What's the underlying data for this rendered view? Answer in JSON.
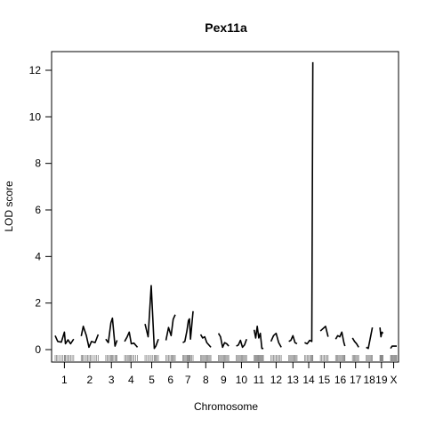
{
  "chart_data": {
    "type": "line",
    "title": "Pex11a",
    "xlabel": "Chromosome",
    "ylabel": "LOD score",
    "ylim": [
      0,
      12.8
    ],
    "y_ticks": [
      0,
      2,
      4,
      6,
      8,
      10,
      12
    ],
    "grid": false,
    "legend": "none",
    "line_color": "#000000",
    "chromosomes": [
      {
        "label": "1",
        "x": [
          0,
          5,
          12,
          18,
          20,
          25,
          30,
          36
        ],
        "lod": [
          0.6,
          0.35,
          0.32,
          0.75,
          0.25,
          0.42,
          0.25,
          0.45
        ]
      },
      {
        "label": "2",
        "x": [
          0,
          4,
          10,
          15,
          20,
          27,
          33
        ],
        "lod": [
          0.58,
          1.0,
          0.6,
          0.1,
          0.35,
          0.3,
          0.65
        ]
      },
      {
        "label": "3",
        "x": [
          0,
          5,
          10,
          13,
          18,
          22
        ],
        "lod": [
          0.45,
          0.3,
          1.15,
          1.35,
          0.15,
          0.4
        ]
      },
      {
        "label": "4",
        "x": [
          0,
          5,
          9,
          13,
          18,
          25
        ],
        "lod": [
          0.35,
          0.55,
          0.75,
          0.25,
          0.28,
          0.1
        ]
      },
      {
        "label": "5",
        "x": [
          0,
          6,
          12,
          18,
          21,
          26
        ],
        "lod": [
          1.1,
          0.55,
          2.75,
          0.05,
          0.15,
          0.45
        ]
      },
      {
        "label": "6",
        "x": [
          0,
          5,
          10,
          14,
          18
        ],
        "lod": [
          0.4,
          0.95,
          0.6,
          1.3,
          1.5
        ]
      },
      {
        "label": "7",
        "x": [
          0,
          4,
          8,
          11,
          13,
          15,
          20
        ],
        "lod": [
          0.3,
          0.35,
          0.8,
          1.25,
          1.32,
          0.45,
          1.65
        ]
      },
      {
        "label": "8",
        "x": [
          0,
          4,
          8,
          12,
          16,
          20
        ],
        "lod": [
          0.65,
          0.5,
          0.55,
          0.3,
          0.2,
          0.1
        ]
      },
      {
        "label": "9",
        "x": [
          0,
          4,
          8,
          12,
          16,
          20
        ],
        "lod": [
          0.7,
          0.55,
          0.1,
          0.3,
          0.25,
          0.15
        ]
      },
      {
        "label": "10",
        "x": [
          0,
          4,
          8,
          12,
          16,
          20
        ],
        "lod": [
          0.15,
          0.2,
          0.4,
          0.1,
          0.2,
          0.45
        ]
      },
      {
        "label": "11",
        "x": [
          0,
          3,
          6,
          9,
          12,
          15,
          18
        ],
        "lod": [
          0.85,
          0.5,
          1.0,
          0.5,
          0.7,
          0.05,
          0.05
        ]
      },
      {
        "label": "12",
        "x": [
          0,
          5,
          10,
          15,
          20
        ],
        "lod": [
          0.35,
          0.6,
          0.7,
          0.3,
          0.1
        ]
      },
      {
        "label": "13",
        "x": [
          0,
          4,
          8,
          12,
          16
        ],
        "lod": [
          0.35,
          0.4,
          0.6,
          0.3,
          0.25
        ]
      },
      {
        "label": "14",
        "x": [
          0,
          5,
          10,
          14,
          16
        ],
        "lod": [
          0.3,
          0.25,
          0.4,
          0.35,
          12.35
        ]
      },
      {
        "label": "15",
        "x": [
          0,
          5,
          10,
          15
        ],
        "lod": [
          0.8,
          0.9,
          1.0,
          0.55
        ]
      },
      {
        "label": "16",
        "x": [
          0,
          4,
          8,
          12,
          16,
          18
        ],
        "lod": [
          0.45,
          0.6,
          0.55,
          0.75,
          0.3,
          0.15
        ]
      },
      {
        "label": "17",
        "x": [
          0,
          4,
          8,
          12
        ],
        "lod": [
          0.5,
          0.35,
          0.25,
          0.1
        ]
      },
      {
        "label": "18",
        "x": [
          0,
          4,
          8,
          12
        ],
        "lod": [
          0.1,
          0.05,
          0.5,
          0.95
        ]
      },
      {
        "label": "19",
        "x": [
          0,
          2,
          4,
          6
        ],
        "lod": [
          0.95,
          0.55,
          0.75,
          0.7
        ]
      },
      {
        "label": "X",
        "x": [
          0,
          3,
          6,
          9,
          12
        ],
        "lod": [
          0.05,
          0.15,
          0.15,
          0.15,
          0.15
        ]
      }
    ]
  }
}
